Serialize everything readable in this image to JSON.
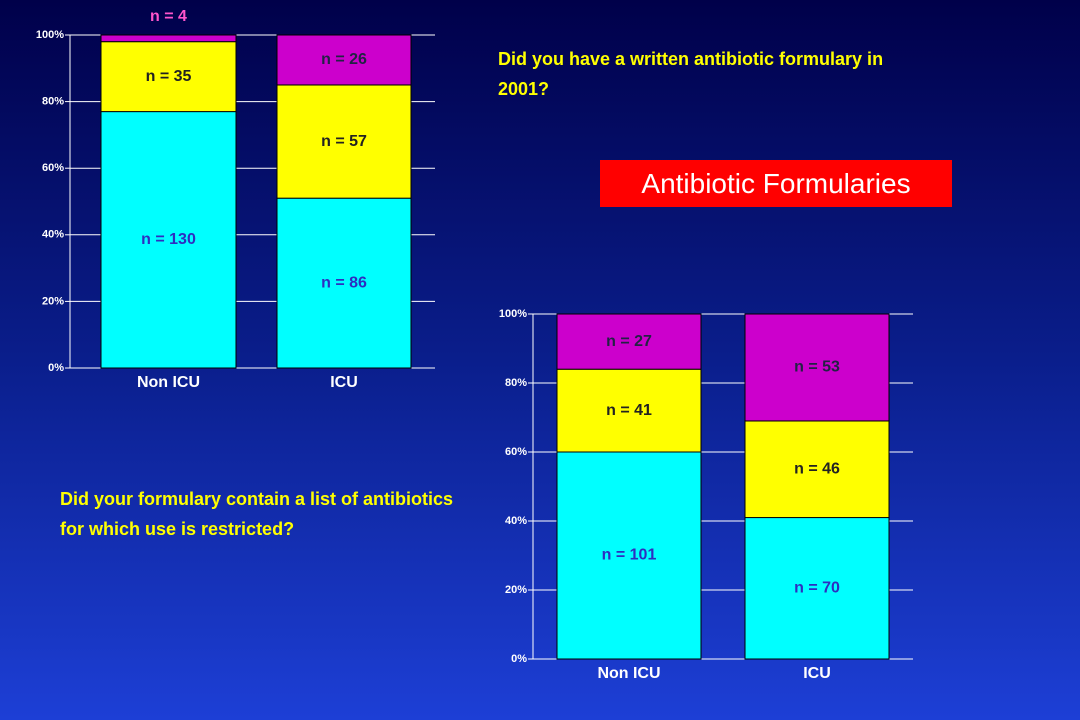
{
  "heading": "Antibiotic Formularies",
  "chart_data": [
    {
      "type": "bar",
      "stacked": true,
      "title": "Did you have a written antibiotic formulary in 2001?",
      "categories": [
        "Non ICU",
        "ICU"
      ],
      "series": [
        {
          "color": "#00ffff",
          "values": [
            77,
            51
          ],
          "annotations": [
            "n = 130",
            "n = 86"
          ]
        },
        {
          "color": "#ffff00",
          "values": [
            21,
            34
          ],
          "annotations": [
            "n = 35",
            "n = 57"
          ]
        },
        {
          "color": "#cc00cc",
          "values": [
            2,
            15
          ],
          "annotations": [
            "n = 4",
            "n = 26"
          ]
        }
      ],
      "ylim": [
        0,
        100
      ],
      "yticks": [
        {
          "value": 0,
          "label": "0%"
        },
        {
          "value": 20,
          "label": "20%"
        },
        {
          "value": 40,
          "label": "40%"
        },
        {
          "value": 60,
          "label": "60%"
        },
        {
          "value": 80,
          "label": "80%"
        },
        {
          "value": 100,
          "label": "100%"
        }
      ],
      "grid": true
    },
    {
      "type": "bar",
      "stacked": true,
      "title": "Did your formulary contain a list of antibiotics for which use is restricted?",
      "categories": [
        "Non ICU",
        "ICU"
      ],
      "series": [
        {
          "color": "#00ffff",
          "values": [
            60,
            41
          ],
          "annotations": [
            "n = 101",
            "n = 70"
          ]
        },
        {
          "color": "#ffff00",
          "values": [
            24,
            28
          ],
          "annotations": [
            "n = 41",
            "n = 46"
          ]
        },
        {
          "color": "#cc00cc",
          "values": [
            16,
            31
          ],
          "annotations": [
            "n = 27",
            "n = 53"
          ]
        }
      ],
      "ylim": [
        0,
        100
      ],
      "yticks": [
        {
          "value": 0,
          "label": "0%"
        },
        {
          "value": 20,
          "label": "20%"
        },
        {
          "value": 40,
          "label": "40%"
        },
        {
          "value": 60,
          "label": "60%"
        },
        {
          "value": 80,
          "label": "80%"
        },
        {
          "value": 100,
          "label": "100%"
        }
      ],
      "grid": true
    }
  ]
}
